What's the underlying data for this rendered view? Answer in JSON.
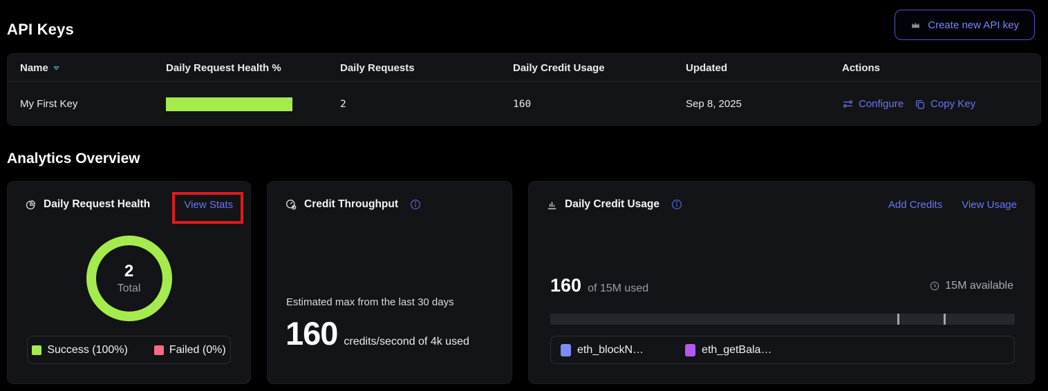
{
  "colors": {
    "accent_indigo": "#6b76f3",
    "lime": "#a5eb4e",
    "pink": "#fa6a82",
    "legend_blue": "#7d8df7",
    "legend_purple": "#b259ee",
    "annotation_red": "#e01b1b"
  },
  "header": {
    "title": "API Keys",
    "create_button_label": "Create new API key"
  },
  "table": {
    "columns": [
      "Name",
      "Daily Request Health %",
      "Daily Requests",
      "Daily Credit Usage",
      "Updated",
      "Actions"
    ],
    "rows": [
      {
        "name": "My First Key",
        "health_percent": 100,
        "daily_requests": "2",
        "daily_credit_usage": "160",
        "updated": "Sep 8, 2025",
        "configure_label": "Configure",
        "copy_key_label": "Copy Key"
      }
    ]
  },
  "analytics": {
    "heading": "Analytics Overview",
    "daily_request_health": {
      "title": "Daily Request Health",
      "view_stats_label": "View Stats",
      "total_value": "2",
      "total_label": "Total",
      "legend": [
        {
          "label": "Success (100%)"
        },
        {
          "label": "Failed (0%)"
        }
      ]
    },
    "credit_throughput": {
      "title": "Credit Throughput",
      "description": "Estimated max from the last 30 days",
      "value": "160",
      "unit": "credits/second of 4k used"
    },
    "daily_credit_usage": {
      "title": "Daily Credit Usage",
      "add_credits_label": "Add Credits",
      "view_usage_label": "View Usage",
      "used_value": "160",
      "used_suffix": "of 15M used",
      "available_label": "15M available",
      "markers_percent": [
        74.7,
        84.7
      ],
      "legend": [
        {
          "label": "eth_blockN…"
        },
        {
          "label": "eth_getBala…"
        }
      ]
    }
  }
}
